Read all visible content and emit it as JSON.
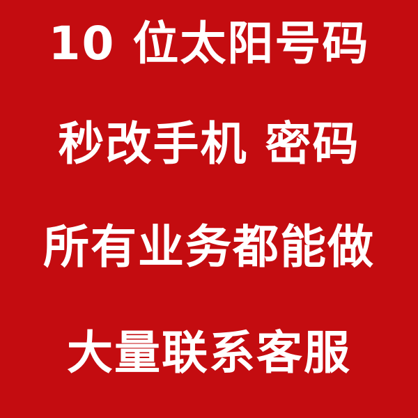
{
  "lines": [
    "10 位太阳号码",
    "秒改手机 密码",
    "所有业务都能做",
    "大量联系客服"
  ],
  "colors": {
    "background": "#c40c10",
    "text": "#ffffff"
  }
}
